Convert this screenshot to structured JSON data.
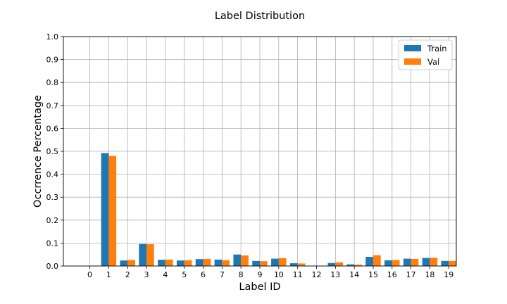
{
  "chart_data": {
    "type": "bar",
    "title": "Label Distribution",
    "xlabel": "Label ID",
    "ylabel": "Occrrence Percentage",
    "categories": [
      "0",
      "1",
      "2",
      "3",
      "4",
      "5",
      "6",
      "7",
      "8",
      "9",
      "10",
      "11",
      "12",
      "13",
      "14",
      "15",
      "16",
      "17",
      "18",
      "19"
    ],
    "yticks": [
      "0.0",
      "0.1",
      "0.2",
      "0.3",
      "0.4",
      "0.5",
      "0.6",
      "0.7",
      "0.8",
      "0.9",
      "1.0"
    ],
    "ylim": [
      0,
      1.0
    ],
    "grid": true,
    "legend_position": "top-right",
    "series": [
      {
        "name": "Train",
        "color": "#1f77b4",
        "values": [
          0,
          0.492,
          0.024,
          0.096,
          0.027,
          0.024,
          0.03,
          0.028,
          0.05,
          0.022,
          0.032,
          0.012,
          0,
          0.013,
          0.007,
          0.04,
          0.025,
          0.032,
          0.035,
          0.022
        ]
      },
      {
        "name": "Val",
        "color": "#ff7f0e",
        "values": [
          0,
          0.48,
          0.026,
          0.095,
          0.028,
          0.025,
          0.031,
          0.025,
          0.046,
          0.021,
          0.034,
          0.011,
          0,
          0.016,
          0.006,
          0.047,
          0.026,
          0.031,
          0.036,
          0.022
        ]
      }
    ]
  }
}
